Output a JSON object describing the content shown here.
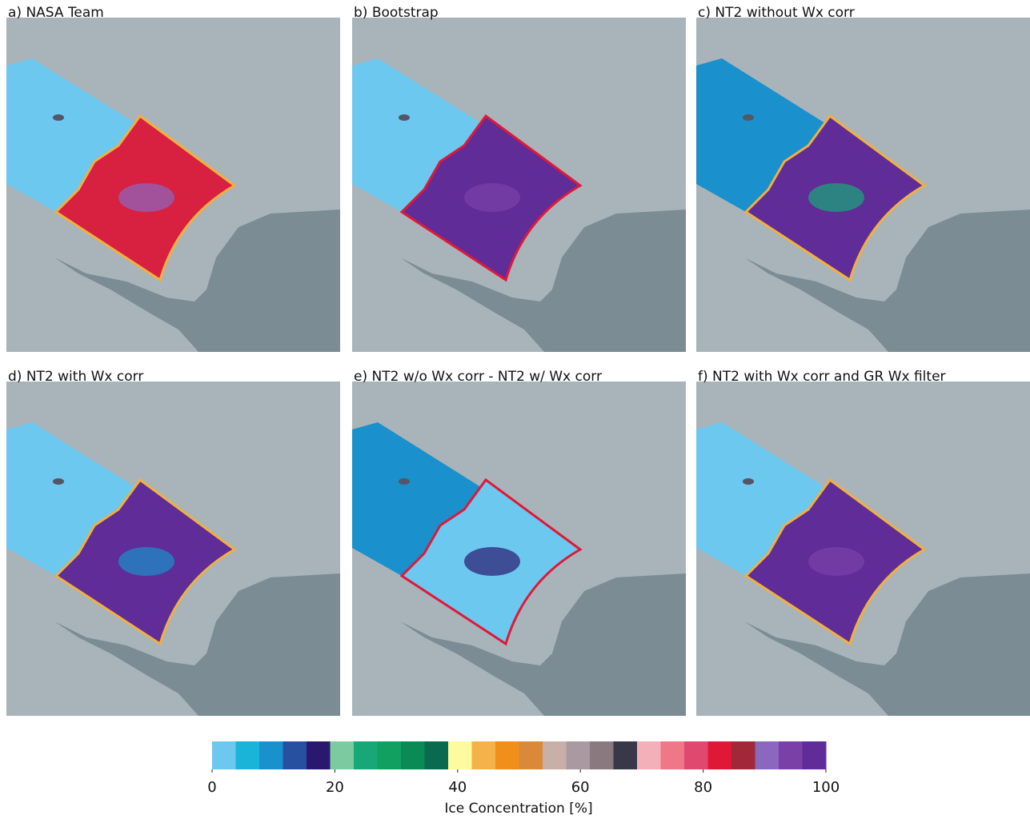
{
  "panels": [
    {
      "title": "a) NASA Team"
    },
    {
      "title": "b) Bootstrap"
    },
    {
      "title": "c) NT2 without Wx corr"
    },
    {
      "title": "d) NT2 with Wx corr"
    },
    {
      "title": "e) NT2 w/o Wx corr - NT2 w/ Wx corr"
    },
    {
      "title": "f) NT2 with Wx corr and GR Wx filter"
    }
  ],
  "colorbar": {
    "colors": [
      "#6cc8ee",
      "#1ab4d8",
      "#1a90cc",
      "#2850a0",
      "#2a1870",
      "#7ccaa0",
      "#18a878",
      "#10a060",
      "#0a8a55",
      "#0a6a50",
      "#fffaa0",
      "#f6b24a",
      "#f0901a",
      "#d88a3a",
      "#c8b0a8",
      "#a89aa0",
      "#8a7a80",
      "#383848",
      "#f4b0b8",
      "#ee7888",
      "#e04870",
      "#e01838",
      "#a02838",
      "#8a68c0",
      "#7a40a8",
      "#602c98"
    ],
    "lim": [
      0,
      100
    ],
    "ticks": [
      0,
      20,
      40,
      60,
      80,
      100
    ],
    "label": "Ice Concentration [%]"
  }
}
